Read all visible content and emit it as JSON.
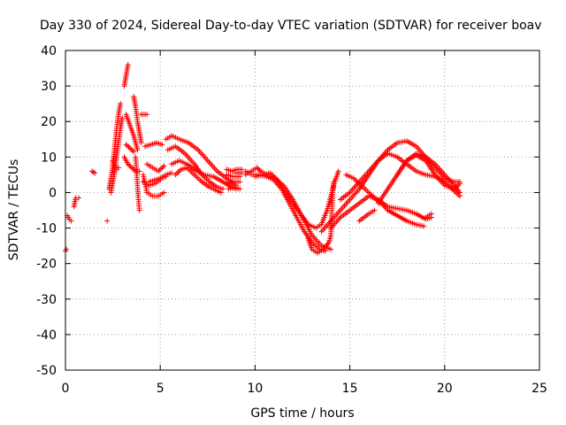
{
  "chart_data": {
    "type": "scatter",
    "title": "Day 330 of 2024, Sidereal Day-to-day VTEC variation (SDTVAR) for receiver boav",
    "xlabel": "GPS time / hours",
    "ylabel": "SDTVAR / TECUs",
    "xlim": [
      0,
      25
    ],
    "ylim": [
      -50,
      40
    ],
    "xticks": [
      0,
      5,
      10,
      15,
      20,
      25
    ],
    "yticks": [
      -50,
      -40,
      -30,
      -20,
      -10,
      0,
      10,
      20,
      30,
      40
    ],
    "grid": true,
    "marker": "+",
    "color": "#ff0000",
    "segments": [
      [
        [
          0.0,
          -16.5
        ],
        [
          0.05,
          -16.0
        ]
      ],
      [
        [
          0.1,
          -6.5
        ],
        [
          0.2,
          -7.5
        ],
        [
          0.3,
          -8.0
        ]
      ],
      [
        [
          0.45,
          -4.0
        ],
        [
          0.5,
          -2.5
        ],
        [
          0.55,
          -1.5
        ],
        [
          0.7,
          -1.5
        ]
      ],
      [
        [
          1.4,
          6.0
        ],
        [
          1.55,
          5.5
        ]
      ],
      [
        [
          2.2,
          -8.0
        ]
      ],
      [
        [
          2.3,
          1.0
        ],
        [
          2.4,
          4.0
        ],
        [
          2.5,
          8.0
        ],
        [
          2.6,
          13.0
        ],
        [
          2.7,
          18.0
        ],
        [
          2.8,
          22.0
        ],
        [
          2.9,
          25.0
        ]
      ],
      [
        [
          2.4,
          0.0
        ],
        [
          2.5,
          3.0
        ],
        [
          2.6,
          6.0
        ],
        [
          2.7,
          10.0
        ],
        [
          2.8,
          14.0
        ],
        [
          2.9,
          18.0
        ],
        [
          3.0,
          21.0
        ]
      ],
      [
        [
          2.5,
          9.0
        ],
        [
          2.6,
          7.0
        ],
        [
          2.7,
          6.5
        ],
        [
          2.8,
          7.0
        ]
      ],
      [
        [
          3.1,
          30.0
        ],
        [
          3.2,
          33.0
        ],
        [
          3.3,
          36.0
        ]
      ],
      [
        [
          3.1,
          10.0
        ],
        [
          3.3,
          8.0
        ],
        [
          3.5,
          7.0
        ],
        [
          3.7,
          6.0
        ],
        [
          3.9,
          6.0
        ]
      ],
      [
        [
          3.2,
          22.0
        ],
        [
          3.4,
          19.0
        ],
        [
          3.6,
          16.0
        ],
        [
          3.8,
          12.0
        ]
      ],
      [
        [
          3.2,
          13.5
        ],
        [
          3.4,
          12.5
        ],
        [
          3.6,
          11.5
        ]
      ],
      [
        [
          3.6,
          27.0
        ],
        [
          3.7,
          24.0
        ],
        [
          3.8,
          20.0
        ],
        [
          3.9,
          17.0
        ],
        [
          4.0,
          14.0
        ]
      ],
      [
        [
          3.7,
          10.0
        ],
        [
          3.75,
          6.0
        ],
        [
          3.8,
          2.0
        ],
        [
          3.85,
          -2.0
        ],
        [
          3.9,
          -5.0
        ]
      ],
      [
        [
          4.0,
          22.0
        ],
        [
          4.3,
          22.0
        ]
      ],
      [
        [
          4.1,
          5.0
        ],
        [
          4.3,
          0.0
        ],
        [
          4.6,
          -1.0
        ],
        [
          4.9,
          -1.0
        ],
        [
          5.2,
          0.0
        ]
      ],
      [
        [
          4.1,
          3.0
        ],
        [
          4.4,
          2.0
        ],
        [
          4.7,
          2.5
        ],
        [
          5.0,
          3.5
        ]
      ],
      [
        [
          4.2,
          13.0
        ],
        [
          4.5,
          13.5
        ],
        [
          4.8,
          14.0
        ],
        [
          5.1,
          13.5
        ]
      ],
      [
        [
          4.3,
          8.0
        ],
        [
          4.6,
          7.0
        ],
        [
          4.9,
          6.0
        ],
        [
          5.2,
          7.5
        ]
      ],
      [
        [
          4.4,
          3.0
        ],
        [
          4.7,
          3.5
        ],
        [
          5.0,
          4.0
        ],
        [
          5.3,
          4.5
        ]
      ],
      [
        [
          5.3,
          15.0
        ],
        [
          5.6,
          16.0
        ],
        [
          6.0,
          15.0
        ],
        [
          6.5,
          14.0
        ],
        [
          7.0,
          12.0
        ],
        [
          7.5,
          9.0
        ],
        [
          8.0,
          6.0
        ],
        [
          8.5,
          4.0
        ],
        [
          9.0,
          2.0
        ]
      ],
      [
        [
          5.4,
          12.0
        ],
        [
          5.8,
          13.0
        ],
        [
          6.3,
          11.0
        ],
        [
          6.8,
          8.0
        ],
        [
          7.2,
          5.0
        ],
        [
          7.6,
          3.0
        ],
        [
          8.0,
          1.5
        ],
        [
          8.3,
          1.0
        ]
      ],
      [
        [
          5.6,
          8.0
        ],
        [
          6.0,
          9.0
        ],
        [
          6.4,
          8.0
        ],
        [
          6.8,
          6.5
        ],
        [
          7.3,
          5.0
        ],
        [
          7.8,
          4.5
        ],
        [
          8.3,
          3.0
        ],
        [
          8.8,
          1.5
        ],
        [
          9.0,
          1.0
        ]
      ],
      [
        [
          5.8,
          5.0
        ],
        [
          6.1,
          6.5
        ],
        [
          6.4,
          7.0
        ],
        [
          6.8,
          5.0
        ],
        [
          7.2,
          3.0
        ],
        [
          7.6,
          1.5
        ],
        [
          8.0,
          0.5
        ],
        [
          8.2,
          0.0
        ]
      ],
      [
        [
          5.0,
          4.0
        ],
        [
          5.3,
          5.0
        ],
        [
          5.6,
          5.5
        ]
      ],
      [
        [
          8.5,
          6.5
        ],
        [
          8.8,
          6.0
        ],
        [
          9.0,
          6.5
        ],
        [
          9.3,
          6.5
        ]
      ],
      [
        [
          8.5,
          5.0
        ],
        [
          8.8,
          4.5
        ],
        [
          9.2,
          4.5
        ]
      ],
      [
        [
          8.5,
          2.5
        ],
        [
          8.8,
          3.0
        ],
        [
          9.2,
          3.0
        ]
      ],
      [
        [
          8.6,
          1.0
        ],
        [
          8.9,
          1.5
        ],
        [
          9.2,
          1.0
        ]
      ],
      [
        [
          9.0,
          5.5
        ],
        [
          9.3,
          5.5
        ]
      ],
      [
        [
          9.5,
          6.0
        ],
        [
          9.7,
          5.5
        ]
      ],
      [
        [
          9.5,
          5.0
        ],
        [
          9.8,
          6.0
        ],
        [
          10.1,
          7.0
        ],
        [
          10.3,
          6.0
        ],
        [
          10.6,
          5.0
        ],
        [
          11.0,
          4.0
        ],
        [
          11.5,
          2.0
        ],
        [
          12.0,
          -2.0
        ],
        [
          12.5,
          -7.0
        ],
        [
          13.0,
          -12.0
        ],
        [
          13.5,
          -15.0
        ],
        [
          14.0,
          -16.0
        ]
      ],
      [
        [
          9.8,
          5.0
        ],
        [
          10.2,
          5.0
        ],
        [
          10.6,
          4.5
        ],
        [
          11.0,
          3.5
        ],
        [
          11.4,
          1.0
        ],
        [
          11.8,
          -3.0
        ],
        [
          12.2,
          -7.0
        ],
        [
          12.6,
          -11.0
        ],
        [
          13.0,
          -14.0
        ],
        [
          13.4,
          -16.0
        ],
        [
          13.7,
          -16.5
        ]
      ],
      [
        [
          10.0,
          4.5
        ],
        [
          10.4,
          5.0
        ],
        [
          10.8,
          5.5
        ],
        [
          11.2,
          3.5
        ],
        [
          11.6,
          0.0
        ],
        [
          12.0,
          -3.0
        ],
        [
          12.4,
          -6.0
        ],
        [
          12.8,
          -9.0
        ],
        [
          13.2,
          -10.0
        ],
        [
          13.5,
          -9.0
        ],
        [
          13.8,
          -5.0
        ],
        [
          14.0,
          -1.0
        ],
        [
          14.2,
          3.0
        ],
        [
          14.4,
          6.0
        ]
      ],
      [
        [
          12.8,
          -13.0
        ],
        [
          13.0,
          -16.0
        ],
        [
          13.3,
          -17.0
        ],
        [
          13.6,
          -16.0
        ],
        [
          13.9,
          -14.0
        ],
        [
          14.0,
          -12.0
        ],
        [
          14.05,
          -5.0
        ],
        [
          14.1,
          0.0
        ],
        [
          14.15,
          3.0
        ]
      ],
      [
        [
          13.5,
          -11.0
        ],
        [
          14.0,
          -8.0
        ],
        [
          14.5,
          -5.0
        ],
        [
          15.0,
          -2.0
        ],
        [
          15.5,
          1.0
        ],
        [
          16.0,
          5.0
        ],
        [
          16.5,
          9.0
        ],
        [
          17.0,
          12.0
        ],
        [
          17.5,
          14.0
        ],
        [
          18.0,
          14.5
        ],
        [
          18.5,
          13.0
        ],
        [
          19.0,
          10.0
        ],
        [
          19.5,
          8.0
        ],
        [
          20.0,
          5.0
        ],
        [
          20.5,
          2.0
        ],
        [
          20.8,
          0.0
        ]
      ],
      [
        [
          14.0,
          -10.0
        ],
        [
          14.5,
          -7.0
        ],
        [
          15.0,
          -5.0
        ],
        [
          15.5,
          -3.0
        ],
        [
          16.0,
          -1.0
        ],
        [
          16.5,
          -2.0
        ],
        [
          17.0,
          -5.0
        ],
        [
          17.5,
          -6.5
        ],
        [
          18.0,
          -8.0
        ],
        [
          18.5,
          -9.0
        ],
        [
          18.9,
          -9.5
        ]
      ],
      [
        [
          14.5,
          -2.0
        ],
        [
          15.0,
          0.0
        ],
        [
          15.5,
          3.0
        ],
        [
          16.0,
          6.0
        ],
        [
          16.5,
          9.0
        ],
        [
          17.0,
          11.0
        ],
        [
          17.5,
          10.0
        ],
        [
          18.0,
          8.0
        ],
        [
          18.5,
          6.0
        ],
        [
          19.0,
          5.0
        ],
        [
          19.5,
          4.5
        ],
        [
          20.0,
          3.0
        ],
        [
          20.5,
          0.5
        ],
        [
          20.8,
          -1.0
        ]
      ],
      [
        [
          14.8,
          5.0
        ],
        [
          15.2,
          4.0
        ],
        [
          15.6,
          2.0
        ],
        [
          16.0,
          0.0
        ],
        [
          16.4,
          -2.0
        ],
        [
          16.6,
          -3.0
        ]
      ],
      [
        [
          15.5,
          -8.0
        ],
        [
          16.0,
          -6.0
        ],
        [
          16.3,
          -5.0
        ]
      ],
      [
        [
          16.5,
          -3.0
        ],
        [
          17.0,
          1.0
        ],
        [
          17.5,
          5.0
        ],
        [
          18.0,
          9.0
        ],
        [
          18.5,
          11.0
        ],
        [
          19.0,
          10.0
        ],
        [
          19.5,
          7.0
        ],
        [
          20.0,
          4.0
        ],
        [
          20.5,
          3.0
        ],
        [
          20.8,
          3.0
        ]
      ],
      [
        [
          16.5,
          -2.0
        ],
        [
          17.0,
          -4.0
        ],
        [
          17.5,
          -4.5
        ],
        [
          18.0,
          -5.0
        ],
        [
          18.5,
          -6.0
        ],
        [
          19.0,
          -7.5
        ],
        [
          19.3,
          -7.0
        ]
      ],
      [
        [
          17.5,
          5.0
        ],
        [
          18.0,
          9.0
        ],
        [
          18.5,
          10.5
        ],
        [
          19.0,
          9.0
        ],
        [
          19.5,
          5.0
        ],
        [
          20.0,
          2.0
        ],
        [
          20.5,
          1.0
        ],
        [
          20.8,
          2.5
        ]
      ],
      [
        [
          19.0,
          -7.0
        ],
        [
          19.3,
          -6.0
        ]
      ]
    ]
  }
}
